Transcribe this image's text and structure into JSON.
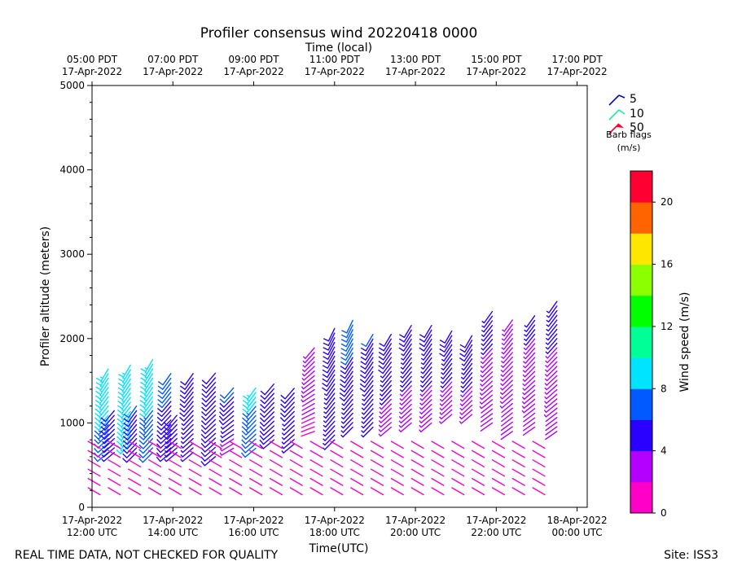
{
  "chart_data": {
    "type": "wind_barb_profile",
    "title": "Profiler consensus wind 20220418 0000",
    "top_xlabel": "Time (local)",
    "xlabel": "Time(UTC)",
    "ylabel": "Profiler altitude (meters)",
    "ylim": [
      0,
      5000
    ],
    "yticks": [
      "0",
      "1000",
      "2000",
      "3000",
      "4000",
      "5000"
    ],
    "xlim_hours": [
      12,
      24.25
    ],
    "bottom_ticks": [
      {
        "hour": 12,
        "line1": "17-Apr-2022",
        "line2": "12:00 UTC"
      },
      {
        "hour": 14,
        "line1": "17-Apr-2022",
        "line2": "14:00 UTC"
      },
      {
        "hour": 16,
        "line1": "17-Apr-2022",
        "line2": "16:00 UTC"
      },
      {
        "hour": 18,
        "line1": "17-Apr-2022",
        "line2": "18:00 UTC"
      },
      {
        "hour": 20,
        "line1": "17-Apr-2022",
        "line2": "20:00 UTC"
      },
      {
        "hour": 22,
        "line1": "17-Apr-2022",
        "line2": "22:00 UTC"
      },
      {
        "hour": 24,
        "line1": "18-Apr-2022",
        "line2": "00:00 UTC"
      }
    ],
    "top_ticks": [
      {
        "hour": 12,
        "line1": "05:00 PDT",
        "line2": "17-Apr-2022"
      },
      {
        "hour": 14,
        "line1": "07:00 PDT",
        "line2": "17-Apr-2022"
      },
      {
        "hour": 16,
        "line1": "09:00 PDT",
        "line2": "17-Apr-2022"
      },
      {
        "hour": 18,
        "line1": "11:00 PDT",
        "line2": "17-Apr-2022"
      },
      {
        "hour": 20,
        "line1": "13:00 PDT",
        "line2": "17-Apr-2022"
      },
      {
        "hour": 22,
        "line1": "15:00 PDT",
        "line2": "17-Apr-2022"
      },
      {
        "hour": 24,
        "line1": "17:00 PDT",
        "line2": "17-Apr-2022"
      }
    ],
    "barb_legend": {
      "entries": [
        {
          "label": "5",
          "color": "#0000e0"
        },
        {
          "label": "10",
          "color": "#1ef09a"
        },
        {
          "label": "50",
          "color": "#ff0030"
        }
      ],
      "title_line1": "Barb flags",
      "title_line2": "(m/s)"
    },
    "colorbar": {
      "label": "Wind speed (m/s)",
      "min": 0,
      "max": 22,
      "ticks": [
        "0",
        "4",
        "8",
        "12",
        "16",
        "20"
      ],
      "colors": [
        "#ff00c8",
        "#b400ff",
        "#2a00ff",
        "#005aff",
        "#00e4ff",
        "#00ff96",
        "#00ff00",
        "#8cff00",
        "#ffe600",
        "#ff6400",
        "#ff0032"
      ]
    },
    "profiles": [
      {
        "t": 12.0,
        "base": 850,
        "top": 1700,
        "s_lo": 3,
        "s_hi": 6,
        "d_lo": 250,
        "d_hi": 220
      },
      {
        "t": 12.4,
        "base": 650,
        "top": 1650,
        "s_lo": 7,
        "s_hi": 10,
        "d_lo": 230,
        "d_hi": 210
      },
      {
        "t": 12.55,
        "base": 650,
        "top": 1150,
        "s_lo": 4.5,
        "s_hi": 5.5,
        "d_lo": 230,
        "d_hi": 220
      },
      {
        "t": 12.95,
        "base": 750,
        "top": 1700,
        "s_lo": 8,
        "s_hi": 10,
        "d_lo": 225,
        "d_hi": 210
      },
      {
        "t": 13.1,
        "base": 650,
        "top": 1200,
        "s_lo": 5,
        "s_hi": 6,
        "d_lo": 225,
        "d_hi": 215
      },
      {
        "t": 13.5,
        "base": 650,
        "top": 1750,
        "s_lo": 7,
        "s_hi": 9,
        "d_lo": 225,
        "d_hi": 210
      },
      {
        "t": 13.95,
        "base": 650,
        "top": 1600,
        "s_lo": 5,
        "s_hi": 6.5,
        "d_lo": 230,
        "d_hi": 215
      },
      {
        "t": 14.1,
        "base": 650,
        "top": 1100,
        "s_lo": 4.5,
        "s_hi": 5.5,
        "d_lo": 230,
        "d_hi": 220
      },
      {
        "t": 14.5,
        "base": 650,
        "top": 1600,
        "s_lo": 4,
        "s_hi": 6,
        "d_lo": 230,
        "d_hi": 215
      },
      {
        "t": 15.05,
        "base": 600,
        "top": 1600,
        "s_lo": 5,
        "s_hi": 6,
        "d_lo": 230,
        "d_hi": 220
      },
      {
        "t": 15.5,
        "base": 700,
        "top": 1450,
        "s_lo": 3.5,
        "s_hi": 6.5,
        "d_lo": 240,
        "d_hi": 220
      },
      {
        "t": 16.05,
        "base": 700,
        "top": 1450,
        "s_lo": 7,
        "s_hi": 8.5,
        "d_lo": 230,
        "d_hi": 215
      },
      {
        "t": 16.5,
        "base": 800,
        "top": 1500,
        "s_lo": 5,
        "s_hi": 6,
        "d_lo": 230,
        "d_hi": 220
      },
      {
        "t": 17.0,
        "base": 750,
        "top": 1450,
        "s_lo": 4.5,
        "s_hi": 5.5,
        "d_lo": 230,
        "d_hi": 220
      },
      {
        "t": 17.5,
        "base": 900,
        "top": 1900,
        "s_lo": 1.5,
        "s_hi": 4,
        "d_lo": 250,
        "d_hi": 220
      },
      {
        "t": 18.0,
        "base": 800,
        "top": 2150,
        "s_lo": 4,
        "s_hi": 6,
        "d_lo": 225,
        "d_hi": 205
      },
      {
        "t": 18.45,
        "base": 950,
        "top": 2250,
        "s_lo": 4,
        "s_hi": 7,
        "d_lo": 225,
        "d_hi": 205
      },
      {
        "t": 18.95,
        "base": 950,
        "top": 2050,
        "s_lo": 4,
        "s_hi": 6,
        "d_lo": 225,
        "d_hi": 210
      },
      {
        "t": 19.4,
        "base": 950,
        "top": 2100,
        "s_lo": 3,
        "s_hi": 6,
        "d_lo": 230,
        "d_hi": 210
      },
      {
        "t": 19.9,
        "base": 1000,
        "top": 2200,
        "s_lo": 3,
        "s_hi": 5.5,
        "d_lo": 230,
        "d_hi": 210
      },
      {
        "t": 20.4,
        "base": 1000,
        "top": 2200,
        "s_lo": 3,
        "s_hi": 5.5,
        "d_lo": 230,
        "d_hi": 210
      },
      {
        "t": 20.9,
        "base": 1100,
        "top": 2100,
        "s_lo": 3,
        "s_hi": 5.5,
        "d_lo": 230,
        "d_hi": 210
      },
      {
        "t": 21.4,
        "base": 1100,
        "top": 2050,
        "s_lo": 3,
        "s_hi": 5.5,
        "d_lo": 230,
        "d_hi": 210
      },
      {
        "t": 21.9,
        "base": 1000,
        "top": 2350,
        "s_lo": 2,
        "s_hi": 5,
        "d_lo": 235,
        "d_hi": 215
      },
      {
        "t": 22.4,
        "base": 900,
        "top": 2250,
        "s_lo": 2,
        "s_hi": 4,
        "d_lo": 235,
        "d_hi": 215
      },
      {
        "t": 22.95,
        "base": 950,
        "top": 2300,
        "s_lo": 2,
        "s_hi": 4.5,
        "d_lo": 235,
        "d_hi": 215
      },
      {
        "t": 23.5,
        "base": 900,
        "top": 2450,
        "s_lo": 2,
        "s_hi": 5,
        "d_lo": 235,
        "d_hi": 215
      }
    ],
    "low_level_barbs": {
      "t_start": 12.2,
      "t_end": 23.6,
      "step": 0.5,
      "alt_lo": 150,
      "alt_hi": 750,
      "speed": 1.5,
      "dir": 300
    }
  },
  "footer": {
    "left_note": "REAL TIME DATA, NOT CHECKED FOR QUALITY",
    "site": "Site: ISS3"
  }
}
